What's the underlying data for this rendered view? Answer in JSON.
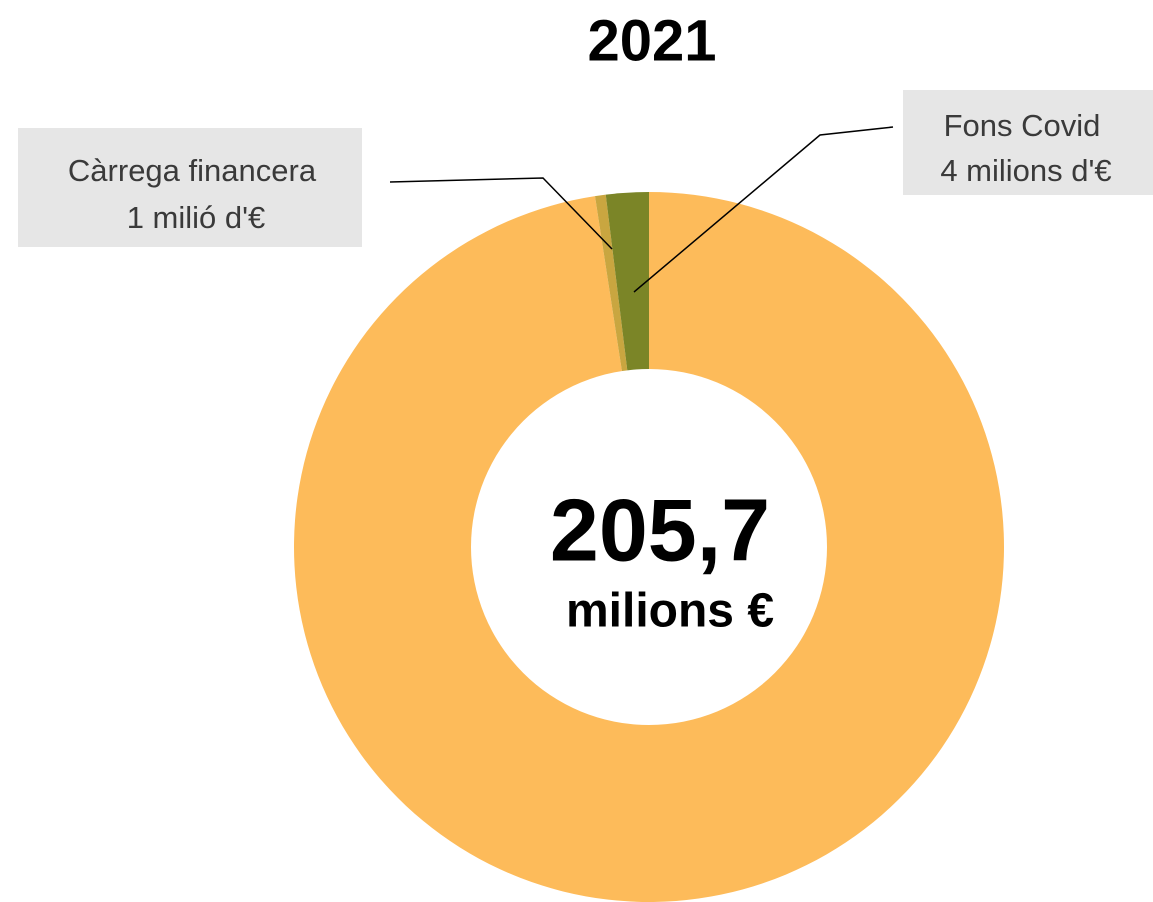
{
  "chart_data": {
    "type": "donut",
    "title": "2021",
    "categories": [
      null,
      "Càrrega financera",
      "Fons Covid"
    ],
    "values": [
      200.7,
      1,
      4
    ],
    "value_labels": [
      null,
      "1 milió d'€",
      "4 milions d'€"
    ],
    "colors": [
      "#fdbb5a",
      "#c9a640",
      "#7b8527"
    ],
    "total": {
      "value": 205.7,
      "label": "205,7"
    },
    "total_unit": "milions €"
  }
}
